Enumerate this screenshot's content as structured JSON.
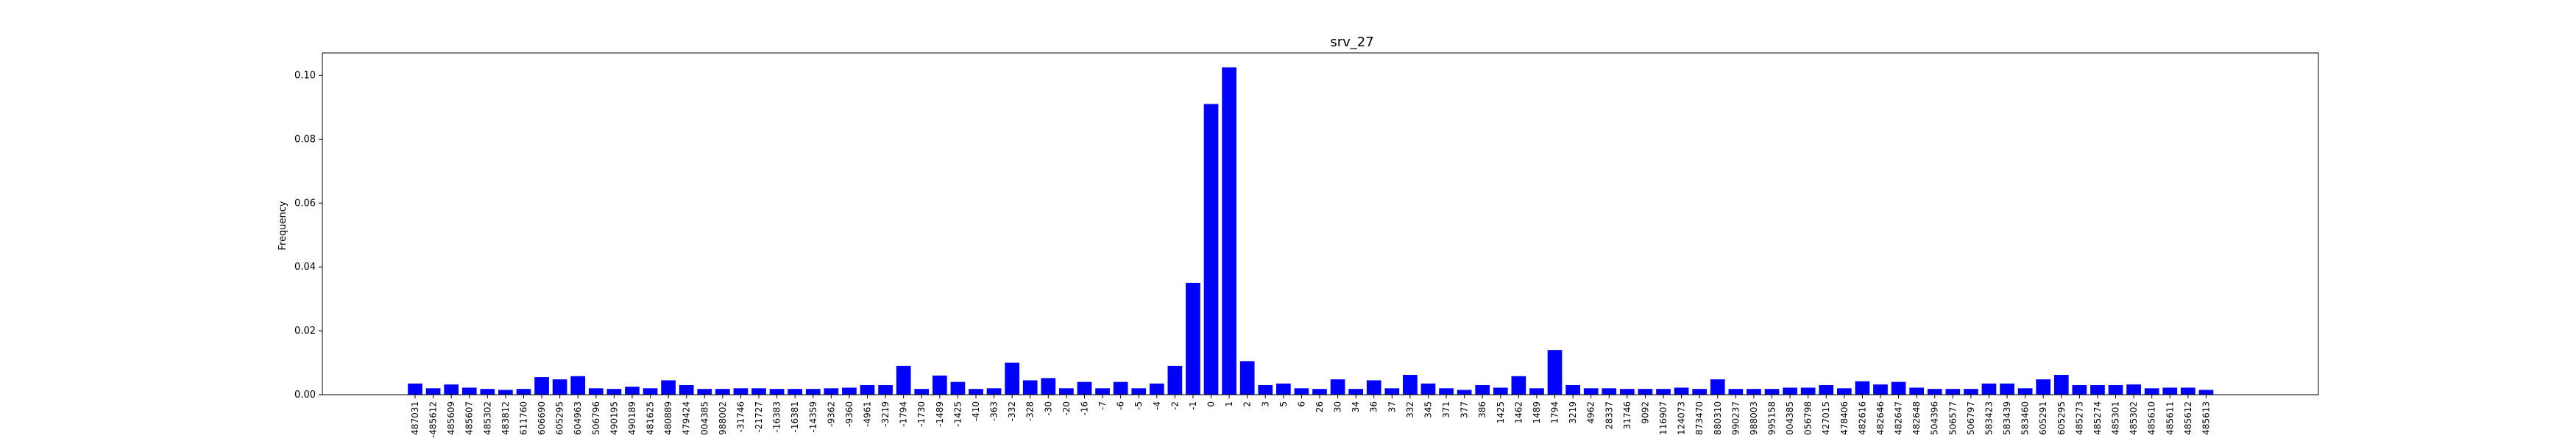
{
  "chart_data": {
    "type": "bar",
    "title": "srv_27",
    "xlabel": "",
    "ylabel": "Frequency",
    "ylim": [
      0,
      0.107
    ],
    "yticks": [
      "0.00",
      "0.02",
      "0.04",
      "0.06",
      "0.08",
      "0.10"
    ],
    "ytick_values": [
      0,
      0.02,
      0.04,
      0.06,
      0.08,
      0.1
    ],
    "bar_color": "#0000ff",
    "grid": false,
    "categories": [
      "487031",
      "-485612",
      "485609",
      "485607",
      "485302",
      "483812",
      "611760",
      "606690",
      "605295",
      "604963",
      "506796",
      "490195",
      "490189",
      "481625",
      "480889",
      "479424",
      "004385",
      "988002",
      "-31746",
      "-21727",
      "-16383",
      "-16381",
      "-14359",
      "-9362",
      "-9360",
      "-4961",
      "-3219",
      "-1794",
      "-1730",
      "-1489",
      "-1425",
      "-410",
      "-363",
      "-332",
      "-328",
      "-30",
      "-20",
      "-16",
      "-7",
      "-6",
      "-5",
      "-4",
      "-2",
      "-1",
      "0",
      "1",
      "2",
      "3",
      "5",
      "6",
      "26",
      "30",
      "34",
      "36",
      "37",
      "332",
      "345",
      "371",
      "377",
      "386",
      "1425",
      "1462",
      "1489",
      "1794",
      "3219",
      "4962",
      "28337",
      "31746",
      "9092",
      "116907",
      "124073",
      "873470",
      "880310",
      "990237",
      "988003",
      "995158",
      "004385",
      "056798",
      "427015",
      "478406",
      "482616",
      "482646",
      "482647",
      "482648",
      "504396",
      "506577",
      "506797",
      "583423",
      "583439",
      "583460",
      "605291",
      "605295",
      "485273",
      "485274",
      "485301",
      "485302",
      "485610",
      "485611",
      "485612",
      "485613"
    ],
    "values": [
      0.0035,
      0.002,
      0.0032,
      0.0022,
      0.0018,
      0.0015,
      0.0018,
      0.0055,
      0.0048,
      0.0058,
      0.002,
      0.0018,
      0.0025,
      0.002,
      0.0045,
      0.003,
      0.0018,
      0.0018,
      0.002,
      0.002,
      0.0018,
      0.0018,
      0.0018,
      0.002,
      0.0022,
      0.003,
      0.003,
      0.009,
      0.0018,
      0.006,
      0.004,
      0.0018,
      0.002,
      0.01,
      0.0045,
      0.0052,
      0.002,
      0.004,
      0.002,
      0.004,
      0.002,
      0.0035,
      0.009,
      0.035,
      0.091,
      0.1025,
      0.0105,
      0.003,
      0.0035,
      0.002,
      0.0018,
      0.0048,
      0.0018,
      0.0045,
      0.002,
      0.0062,
      0.0035,
      0.002,
      0.0015,
      0.003,
      0.0022,
      0.0058,
      0.002,
      0.014,
      0.003,
      0.002,
      0.002,
      0.0018,
      0.0018,
      0.0018,
      0.0022,
      0.0018,
      0.0048,
      0.0018,
      0.0018,
      0.0018,
      0.0022,
      0.0022,
      0.003,
      0.002,
      0.0042,
      0.0032,
      0.004,
      0.0022,
      0.0018,
      0.0018,
      0.0018,
      0.0035,
      0.0035,
      0.002,
      0.0048,
      0.0062,
      0.003,
      0.003,
      0.003,
      0.0032,
      0.002,
      0.0022,
      0.0022,
      0.0015
    ]
  }
}
